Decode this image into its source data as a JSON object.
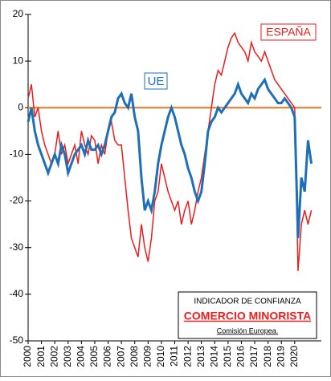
{
  "chart_data": {
    "type": "line",
    "annotations": {
      "ue": "UE",
      "espana": "ESPAÑA"
    },
    "legend_box": {
      "line1": "INDICADOR DE CONFIANZA",
      "line2": "COMERCIO MINORISTA",
      "line3": "Comisión Europea."
    },
    "x": [
      2000,
      2000.25,
      2000.5,
      2000.75,
      2001,
      2001.25,
      2001.5,
      2001.75,
      2002,
      2002.25,
      2002.5,
      2002.75,
      2003,
      2003.25,
      2003.5,
      2003.75,
      2004,
      2004.25,
      2004.5,
      2004.75,
      2005,
      2005.25,
      2005.5,
      2005.75,
      2006,
      2006.25,
      2006.5,
      2006.75,
      2007,
      2007.25,
      2007.5,
      2007.75,
      2008,
      2008.25,
      2008.5,
      2008.75,
      2009,
      2009.25,
      2009.5,
      2009.75,
      2010,
      2010.25,
      2010.5,
      2010.75,
      2011,
      2011.25,
      2011.5,
      2011.75,
      2012,
      2012.25,
      2012.5,
      2012.75,
      2013,
      2013.25,
      2013.5,
      2013.75,
      2014,
      2014.25,
      2014.5,
      2014.75,
      2015,
      2015.25,
      2015.5,
      2015.75,
      2016,
      2016.25,
      2016.5,
      2016.75,
      2017,
      2017.25,
      2017.5,
      2017.75,
      2018,
      2018.25,
      2018.5,
      2018.75,
      2019,
      2019.25,
      2019.5,
      2019.75,
      2020,
      2020.25,
      2020.5,
      2020.75,
      2021,
      2021.25
    ],
    "series": [
      {
        "name": "ESPAÑA",
        "color": "#ee1c1c",
        "values": [
          2,
          5,
          -2,
          0,
          -5,
          -8,
          -10,
          -12,
          -10,
          -5,
          -10,
          -8,
          -12,
          -10,
          -8,
          -12,
          -5,
          -8,
          -10,
          -6,
          -7,
          -12,
          -8,
          -10,
          -5,
          -3,
          -7,
          -8,
          -8,
          -15,
          -22,
          -28,
          -30,
          -32,
          -25,
          -30,
          -33,
          -28,
          -20,
          -18,
          -12,
          -15,
          -18,
          -20,
          -22,
          -20,
          -25,
          -22,
          -20,
          -25,
          -22,
          -18,
          -15,
          -10,
          -5,
          0,
          5,
          8,
          7,
          10,
          13,
          15,
          16,
          14,
          13,
          12,
          10,
          14,
          12,
          11,
          10,
          12,
          10,
          8,
          6,
          5,
          4,
          3,
          2,
          1,
          0,
          -35,
          -25,
          -22,
          -25,
          -22
        ]
      },
      {
        "name": "UE",
        "color": "#1f6fb8",
        "values": [
          -3,
          0,
          -5,
          -8,
          -10,
          -12,
          -14,
          -12,
          -10,
          -12,
          -8,
          -10,
          -14,
          -12,
          -10,
          -9,
          -8,
          -10,
          -7,
          -9,
          -9,
          -8,
          -10,
          -8,
          -5,
          -2,
          -1,
          2,
          3,
          1,
          0,
          3,
          -2,
          -5,
          -15,
          -22,
          -20,
          -22,
          -18,
          -12,
          -8,
          -5,
          -2,
          0,
          -2,
          -5,
          -8,
          -10,
          -13,
          -15,
          -18,
          -20,
          -18,
          -12,
          -5,
          -3,
          -2,
          0,
          -1,
          0,
          1,
          2,
          3,
          5,
          3,
          2,
          1,
          3,
          2,
          4,
          5,
          6,
          4,
          3,
          2,
          1,
          1,
          2,
          1,
          0,
          -2,
          -28,
          -15,
          -18,
          -7,
          -12
        ]
      }
    ],
    "zero_line_color": "#e87722",
    "xlim": [
      2000,
      2022
    ],
    "xticks": [
      2000,
      2001,
      2002,
      2003,
      2004,
      2005,
      2006,
      2007,
      2008,
      2009,
      2010,
      2011,
      2012,
      2013,
      2014,
      2015,
      2016,
      2017,
      2018,
      2019,
      2020
    ],
    "ylim": [
      -50,
      20
    ],
    "yticks": [
      -50,
      -40,
      -30,
      -20,
      -10,
      0,
      10,
      20
    ]
  }
}
